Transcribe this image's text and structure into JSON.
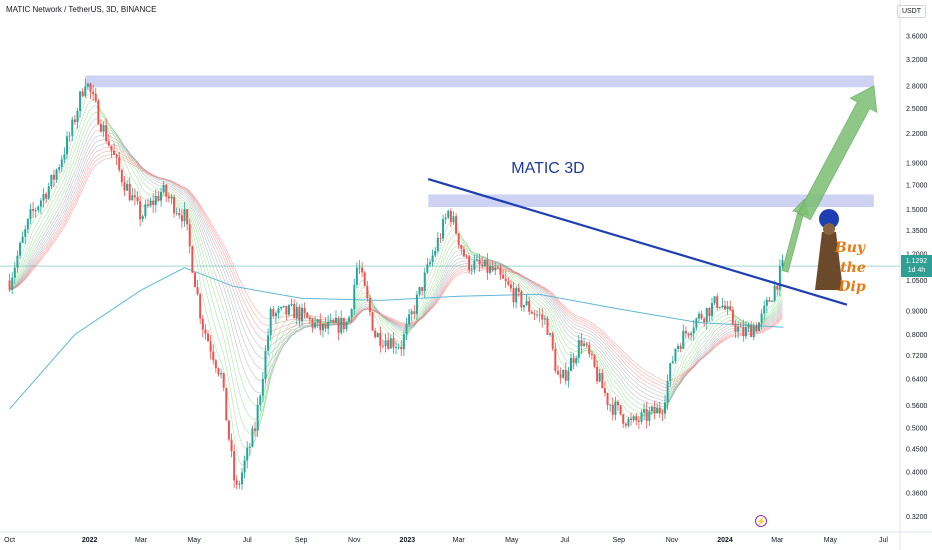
{
  "header": {
    "title": "MATIC Network / TetherUS, 3D, BINANCE",
    "currency": "USDT"
  },
  "annotation": {
    "text": "MATIC 3D"
  },
  "price_tag": {
    "price": "1.1292",
    "countdown": "1d 4h"
  },
  "event_badge": {
    "icon": "lightning-icon",
    "glyph": "⚡"
  },
  "sticker": {
    "lines": [
      "Buy",
      "the",
      "Dip"
    ],
    "figure": "monk-figure-icon"
  },
  "colors": {
    "up": "#26a69a",
    "down": "#ef5350",
    "trendline": "#1e3fb3",
    "zone": "#c5cbf2",
    "arrow": "#7cbf72",
    "ma": "#5fb8d8",
    "pricetag": "#2f9e94"
  },
  "chart_data": {
    "type": "candlestick",
    "title": "MATIC 3D",
    "scale": "log",
    "y_ticks": [
      0.32,
      0.36,
      0.4,
      0.45,
      0.5,
      0.56,
      0.64,
      0.72,
      0.8,
      0.9,
      1.05,
      1.2,
      1.35,
      1.5,
      1.7,
      1.9,
      2.2,
      2.5,
      2.8,
      3.2,
      3.6
    ],
    "y_tick_labels": [
      "0.3200",
      "0.3600",
      "0.4000",
      "0.4500",
      "0.5000",
      "0.5600",
      "0.6400",
      "0.7200",
      "0.8000",
      "0.9000",
      "1.0500",
      "1.2000",
      "1.3500",
      "1.5000",
      "1.7000",
      "1.9000",
      "2.2000",
      "2.5000",
      "2.8000",
      "3.2000",
      "3.6000"
    ],
    "x_tick_labels": [
      "Oct",
      "2022",
      "Mar",
      "May",
      "Jul",
      "Sep",
      "Nov",
      "2023",
      "Mar",
      "May",
      "Jul",
      "Sep",
      "Nov",
      "2024",
      "Mar",
      "May",
      "Jul"
    ],
    "x_tick_dates": [
      "2021-10-01",
      "2022-01-01",
      "2022-03-01",
      "2022-05-01",
      "2022-07-01",
      "2022-09-01",
      "2022-11-01",
      "2023-01-01",
      "2023-03-01",
      "2023-05-01",
      "2023-07-01",
      "2023-09-01",
      "2023-11-01",
      "2024-01-01",
      "2024-03-01",
      "2024-05-01",
      "2024-07-01"
    ],
    "x_tick_bold": [
      false,
      true,
      false,
      false,
      false,
      false,
      false,
      true,
      false,
      false,
      false,
      false,
      false,
      true,
      false,
      false,
      false
    ],
    "price_path": [
      [
        "2021-10-01",
        1.05
      ],
      [
        "2021-10-25",
        1.45
      ],
      [
        "2021-11-20",
        1.75
      ],
      [
        "2021-12-10",
        2.2
      ],
      [
        "2021-12-27",
        2.9
      ],
      [
        "2022-01-15",
        2.3
      ],
      [
        "2022-02-05",
        1.8
      ],
      [
        "2022-03-01",
        1.45
      ],
      [
        "2022-03-25",
        1.65
      ],
      [
        "2022-04-20",
        1.45
      ],
      [
        "2022-05-10",
        0.85
      ],
      [
        "2022-06-01",
        0.65
      ],
      [
        "2022-06-18",
        0.36
      ],
      [
        "2022-07-10",
        0.5
      ],
      [
        "2022-07-28",
        0.88
      ],
      [
        "2022-08-25",
        0.9
      ],
      [
        "2022-09-25",
        0.82
      ],
      [
        "2022-10-25",
        0.85
      ],
      [
        "2022-11-05",
        1.15
      ],
      [
        "2022-11-25",
        0.8
      ],
      [
        "2022-12-25",
        0.76
      ],
      [
        "2023-01-20",
        1.05
      ],
      [
        "2023-02-18",
        1.5
      ],
      [
        "2023-03-10",
        1.15
      ],
      [
        "2023-04-10",
        1.1
      ],
      [
        "2023-05-10",
        0.95
      ],
      [
        "2023-06-10",
        0.85
      ],
      [
        "2023-06-25",
        0.62
      ],
      [
        "2023-07-20",
        0.78
      ],
      [
        "2023-08-20",
        0.57
      ],
      [
        "2023-09-15",
        0.51
      ],
      [
        "2023-10-20",
        0.55
      ],
      [
        "2023-11-05",
        0.75
      ],
      [
        "2023-11-25",
        0.85
      ],
      [
        "2023-12-25",
        0.95
      ],
      [
        "2024-01-20",
        0.8
      ],
      [
        "2024-02-10",
        0.85
      ],
      [
        "2024-03-08",
        1.13
      ]
    ],
    "moving_average": [
      [
        "2021-10-01",
        0.55
      ],
      [
        "2021-12-15",
        0.8
      ],
      [
        "2022-03-01",
        1.0
      ],
      [
        "2022-04-20",
        1.12
      ],
      [
        "2022-06-15",
        1.02
      ],
      [
        "2022-09-01",
        0.96
      ],
      [
        "2022-12-01",
        0.95
      ],
      [
        "2023-03-01",
        0.97
      ],
      [
        "2023-06-01",
        0.98
      ],
      [
        "2023-09-01",
        0.91
      ],
      [
        "2023-12-01",
        0.85
      ],
      [
        "2024-03-08",
        0.83
      ]
    ],
    "trendline": {
      "from": [
        "2023-01-25",
        1.75
      ],
      "to": [
        "2024-05-20",
        0.93
      ]
    },
    "zones": [
      {
        "from": "2021-12-27",
        "to": "2024-06-20",
        "low": 2.78,
        "high": 2.95
      },
      {
        "from": "2023-01-25",
        "to": "2024-06-20",
        "low": 1.52,
        "high": 1.62
      }
    ],
    "projection": [
      {
        "from": [
          "2024-03-10",
          1.1
        ],
        "to": [
          "2024-04-01",
          1.58
        ]
      },
      {
        "from": [
          "2024-04-01",
          1.45
        ],
        "to": [
          "2024-06-20",
          2.8
        ]
      }
    ],
    "last_price": 1.1292
  }
}
